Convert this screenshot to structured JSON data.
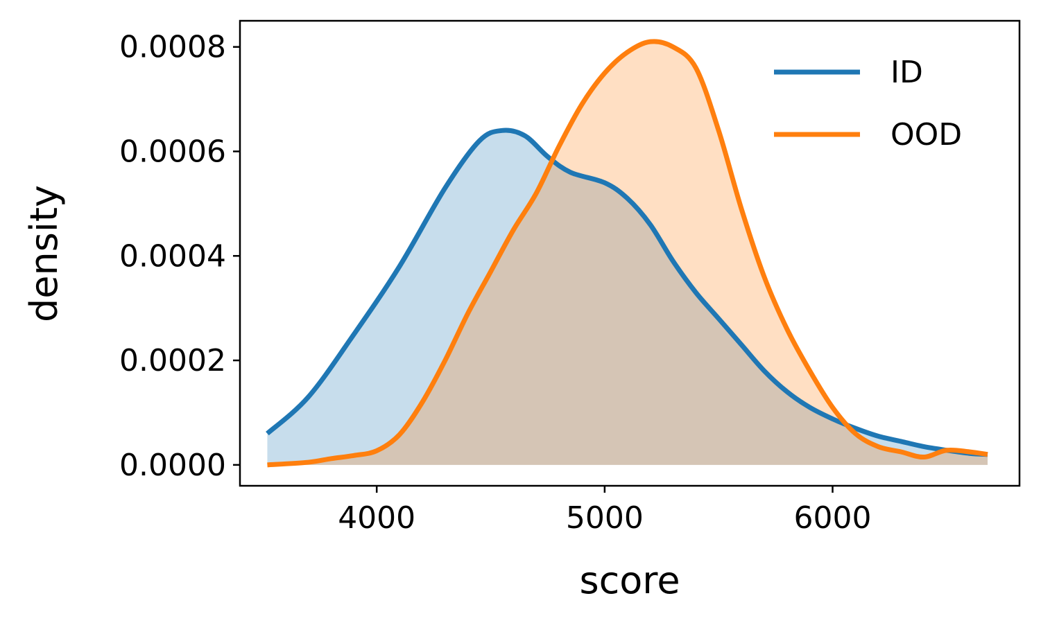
{
  "chart_data": {
    "type": "area",
    "xlabel": "score",
    "ylabel": "density",
    "xlim": [
      3400,
      6820
    ],
    "ylim": [
      -4e-05,
      0.00085
    ],
    "xticks": [
      4000,
      5000,
      6000
    ],
    "xtick_labels": [
      "4000",
      "5000",
      "6000"
    ],
    "yticks": [
      0,
      0.0002,
      0.0004,
      0.0006,
      0.0008
    ],
    "ytick_labels": [
      "0.0000",
      "0.0002",
      "0.0004",
      "0.0006",
      "0.0008"
    ],
    "grid": false,
    "legend_position": "top-right",
    "series": [
      {
        "name": "ID",
        "color": "#1f77b4",
        "fill_color": "#c6dcec",
        "x": [
          3520,
          3700,
          3900,
          4100,
          4300,
          4450,
          4550,
          4650,
          4750,
          4850,
          5000,
          5100,
          5200,
          5300,
          5400,
          5500,
          5600,
          5700,
          5800,
          5900,
          6000,
          6100,
          6200,
          6300,
          6400,
          6500,
          6600,
          6680
        ],
        "y": [
          6e-05,
          0.00013,
          0.00025,
          0.00038,
          0.00053,
          0.00062,
          0.00064,
          0.00063,
          0.00059,
          0.00056,
          0.00054,
          0.00051,
          0.00046,
          0.00039,
          0.00033,
          0.00028,
          0.00023,
          0.00018,
          0.00014,
          0.00011,
          8.8e-05,
          7e-05,
          5.5e-05,
          4.5e-05,
          3.5e-05,
          2.8e-05,
          2.2e-05,
          2e-05
        ]
      },
      {
        "name": "OOD",
        "color": "#ff7f0e",
        "fill_color": "#ffdcbd",
        "x": [
          3520,
          3700,
          3800,
          3900,
          4000,
          4100,
          4200,
          4300,
          4400,
          4500,
          4600,
          4700,
          4800,
          4900,
          5000,
          5100,
          5200,
          5300,
          5400,
          5500,
          5600,
          5700,
          5800,
          5900,
          6000,
          6100,
          6200,
          6300,
          6400,
          6500,
          6600,
          6680
        ],
        "y": [
          0,
          5e-06,
          1.2e-05,
          1.8e-05,
          2.7e-05,
          5.8e-05,
          0.00012,
          0.0002,
          0.00029,
          0.00037,
          0.00045,
          0.00052,
          0.00061,
          0.00069,
          0.00075,
          0.00079,
          0.00081,
          0.0008,
          0.00076,
          0.00064,
          0.00049,
          0.00036,
          0.00026,
          0.00018,
          0.00011,
          6e-05,
          3.5e-05,
          2.5e-05,
          1.5e-05,
          2.8e-05,
          2.5e-05,
          2e-05
        ]
      }
    ]
  }
}
